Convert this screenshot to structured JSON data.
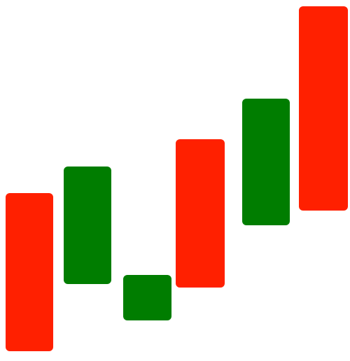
{
  "icon": {
    "name": "candlestick-chart-icon",
    "colors": {
      "bull": "#007d00",
      "bear": "#ff2000",
      "background": "#ffffff"
    },
    "candles": [
      {
        "color": "bear"
      },
      {
        "color": "bull"
      },
      {
        "color": "bull"
      },
      {
        "color": "bear"
      },
      {
        "color": "bull"
      },
      {
        "color": "bear"
      }
    ]
  }
}
